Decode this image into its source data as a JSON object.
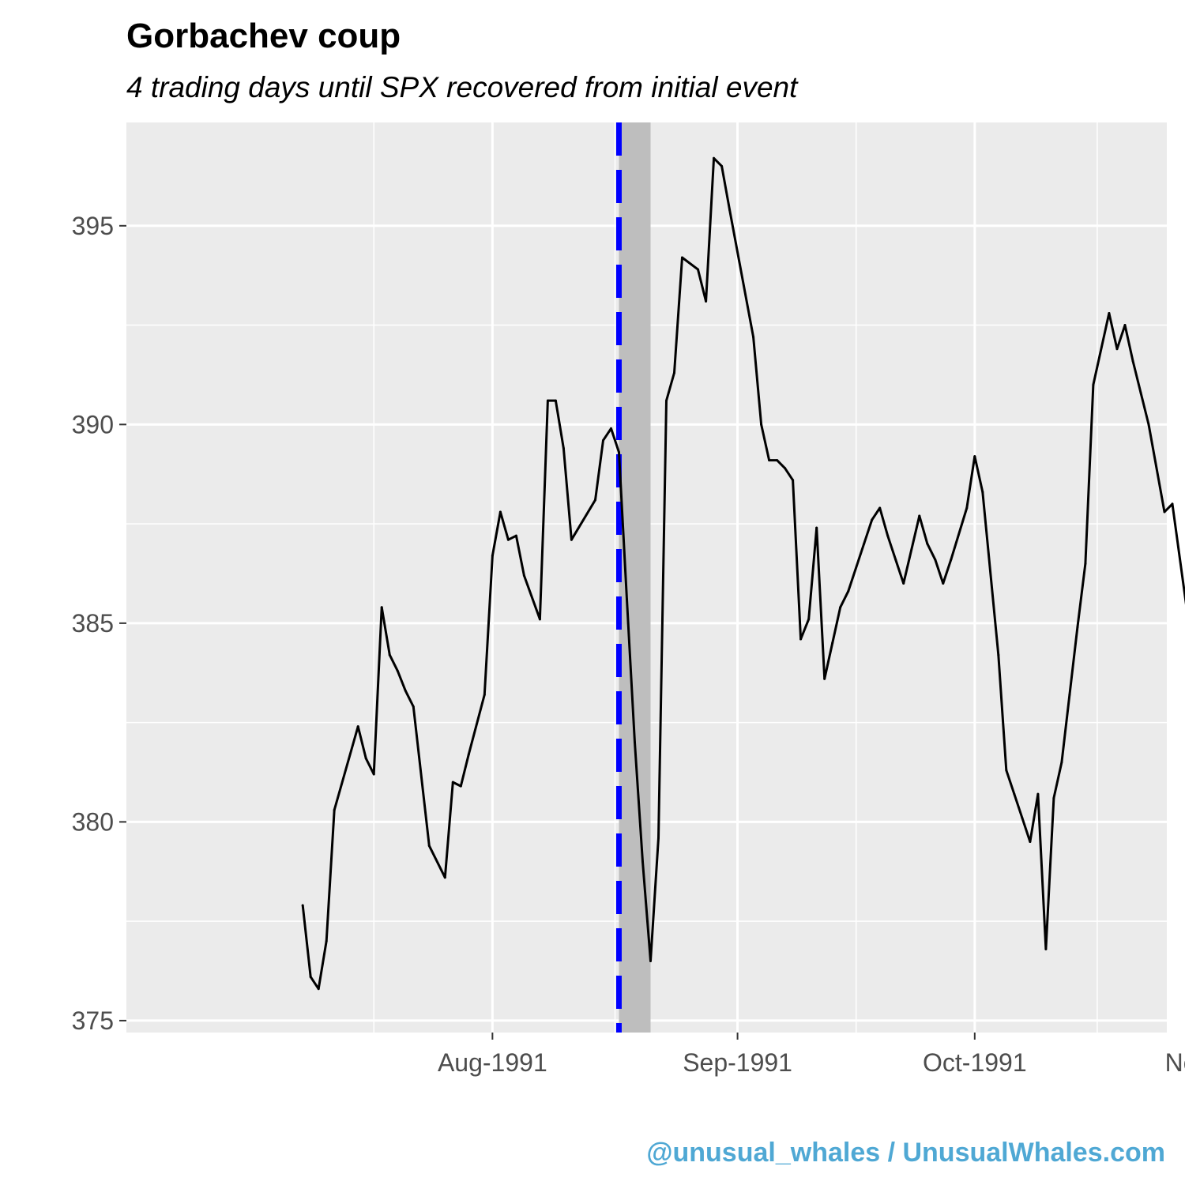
{
  "colors": {
    "panel": "#ebebeb",
    "grid": "#ffffff",
    "line": "#000000",
    "event_line": "#0000ff",
    "shade": "#bebebe",
    "axis_text": "#4d4d4d",
    "caption": "#4fa8d4"
  },
  "caption": "@unusual_whales / UnusualWhales.com",
  "chart_data": {
    "type": "line",
    "title": "Gorbachev coup",
    "subtitle": "4 trading days until SPX recovered from initial event",
    "xlabel": "",
    "ylabel": "",
    "x_unit": "days since 1991-07-01",
    "xlim": [
      -16.3,
      115.3
    ],
    "ylim": [
      374.7,
      397.6
    ],
    "x_ticks": [
      {
        "x": 30,
        "label": "Aug-1991"
      },
      {
        "x": 61,
        "label": "Sep-1991"
      },
      {
        "x": 91,
        "label": "Oct-1991"
      },
      {
        "x": 122,
        "label": "Nov-1991"
      }
    ],
    "x_minor_ticks": [
      15,
      45.5,
      76,
      106.5
    ],
    "y_ticks": [
      {
        "y": 375,
        "label": "375"
      },
      {
        "y": 380,
        "label": "380"
      },
      {
        "y": 385,
        "label": "385"
      },
      {
        "y": 390,
        "label": "390"
      },
      {
        "y": 395,
        "label": "395"
      }
    ],
    "y_minor_ticks": [
      377.5,
      382.5,
      387.5,
      392.5
    ],
    "event_date": {
      "x": 46,
      "label": "1991-08-16"
    },
    "recovery_band": {
      "x_start": 46,
      "x_end": 50
    },
    "series": [
      {
        "name": "SPX close",
        "x": [
          6,
          7,
          8,
          9,
          10,
          13,
          14,
          15,
          16,
          17,
          18,
          19,
          20,
          22,
          24,
          25,
          26,
          27,
          29,
          30,
          31,
          32,
          33,
          34,
          36,
          37,
          38,
          39,
          40,
          43,
          44,
          45,
          46,
          47,
          48,
          49,
          50,
          51,
          52,
          53,
          54,
          56,
          57,
          58,
          59,
          60,
          63,
          64,
          65,
          66,
          67,
          68,
          69,
          70,
          71,
          72,
          73,
          74,
          75,
          77,
          78,
          79,
          80,
          81,
          82,
          84,
          85,
          86,
          87,
          88,
          90,
          91,
          92,
          94,
          95,
          96,
          97,
          98,
          99,
          100,
          101,
          102,
          103,
          104,
          105,
          106,
          108,
          109,
          110,
          111,
          112,
          113,
          115,
          116,
          118,
          119,
          120,
          122,
          123,
          124,
          125,
          126
        ],
        "values": [
          377.9,
          376.1,
          375.8,
          377.0,
          380.3,
          382.4,
          381.6,
          381.2,
          385.4,
          384.2,
          383.8,
          383.3,
          382.9,
          379.4,
          378.6,
          381.0,
          380.9,
          381.7,
          383.2,
          386.7,
          387.8,
          387.1,
          387.2,
          386.2,
          385.1,
          390.6,
          390.6,
          389.4,
          387.1,
          388.1,
          389.6,
          389.9,
          389.3,
          385.6,
          382.0,
          379.0,
          376.5,
          379.6,
          390.6,
          391.3,
          394.2,
          393.9,
          393.1,
          396.7,
          396.5,
          395.4,
          392.2,
          390.0,
          389.1,
          389.1,
          388.9,
          388.6,
          384.6,
          385.1,
          387.4,
          383.6,
          384.5,
          385.4,
          385.8,
          387.0,
          387.6,
          387.9,
          387.2,
          386.6,
          386.0,
          387.7,
          387.0,
          386.6,
          386.0,
          386.6,
          387.9,
          389.2,
          388.3,
          384.2,
          381.3,
          380.7,
          380.1,
          379.5,
          380.7,
          376.8,
          380.6,
          381.5,
          383.2,
          384.9,
          386.5,
          391.0,
          392.8,
          391.9,
          392.5,
          391.6,
          390.8,
          390.0,
          387.8,
          388.0,
          385.1,
          384.2,
          385.9,
          388.3,
          390.9,
          392.9,
          392.4,
          391.3
        ]
      }
    ]
  }
}
